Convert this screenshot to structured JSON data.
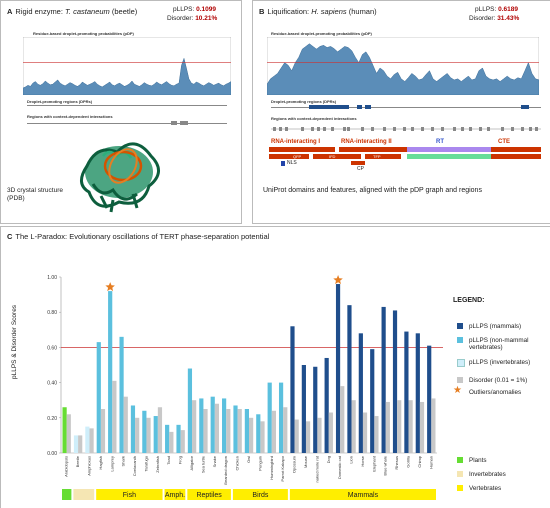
{
  "panel_a": {
    "letter": "A",
    "title_prefix": "Rigid enzyme: ",
    "title_species": "T. castaneum",
    "title_suffix": " (beetle)",
    "pllps_label": "pLLPS:",
    "pllps_value": "0.1099",
    "disorder_label": "Disorder:",
    "disorder_value": "10.21%",
    "profile_title": "Residue-based droplet-promoting probabilities (pDP)",
    "dpr_title": "Droplet-promoting regions (DPRs)",
    "context_title": "Regions with context-dependent interactions",
    "structure_caption_1": "3D crystal structure",
    "structure_caption_2": "(PDB)",
    "profile": [
      0.13,
      0.15,
      0.18,
      0.16,
      0.22,
      0.25,
      0.2,
      0.18,
      0.21,
      0.26,
      0.22,
      0.19,
      0.2,
      0.24,
      0.28,
      0.22,
      0.19,
      0.17,
      0.2,
      0.23,
      0.21,
      0.18,
      0.16,
      0.19,
      0.24,
      0.21,
      0.18,
      0.2,
      0.22,
      0.25,
      0.2,
      0.17,
      0.15,
      0.18,
      0.21,
      0.24,
      0.19,
      0.17,
      0.2,
      0.22,
      0.19,
      0.16,
      0.18,
      0.21,
      0.26,
      0.2,
      0.18,
      0.16,
      0.19,
      0.23,
      0.2,
      0.18,
      0.17,
      0.2,
      0.24,
      0.21,
      0.19,
      0.22,
      0.25,
      0.21,
      0.18,
      0.17,
      0.2,
      0.22,
      0.55,
      0.68,
      0.5,
      0.3,
      0.22,
      0.2,
      0.24,
      0.22,
      0.19,
      0.17,
      0.2,
      0.23,
      0.21,
      0.18,
      0.2,
      0.22,
      0.19,
      0.17,
      0.2,
      0.22,
      0.25
    ]
  },
  "panel_b": {
    "letter": "B",
    "title_prefix": "Liquification: ",
    "title_species": "H. sapiens",
    "title_suffix": " (human)",
    "pllps_label": "pLLPS:",
    "pllps_value": "0.6189",
    "disorder_label": "Disorder:",
    "disorder_value": "31.43%",
    "profile_title": "Residue-based droplet-promoting probabilities (pDP)",
    "dpr_title": "Droplet-promoting regions (DPRs)",
    "context_title": "Regions with context-dependent interactions",
    "domains": [
      {
        "label": "RNA-interacting I",
        "color": "#cc3300"
      },
      {
        "label": "RNA-interacting II",
        "color": "#cc3300"
      },
      {
        "label": "RT",
        "color": "#3355cc"
      },
      {
        "label": "CTE",
        "color": "#cc3300"
      }
    ],
    "subdomain_labels": [
      "NLS",
      "CP",
      "QFP",
      "IFD",
      "TFP"
    ],
    "caption": "UniProt domains and features, aligned with the pDP graph and regions",
    "profile": [
      0.2,
      0.3,
      0.35,
      0.4,
      0.5,
      0.6,
      0.55,
      0.45,
      0.6,
      0.7,
      0.85,
      0.9,
      0.95,
      0.9,
      0.85,
      0.9,
      0.92,
      0.88,
      0.9,
      0.86,
      0.8,
      0.85,
      0.9,
      0.88,
      0.82,
      0.7,
      0.6,
      0.75,
      0.8,
      0.7,
      0.55,
      0.4,
      0.5,
      0.45,
      0.35,
      0.3,
      0.38,
      0.42,
      0.3,
      0.25,
      0.32,
      0.4,
      0.35,
      0.28,
      0.3,
      0.38,
      0.45,
      0.3,
      0.25,
      0.3,
      0.35,
      0.4,
      0.32,
      0.28,
      0.3,
      0.25,
      0.3,
      0.35,
      0.28,
      0.3,
      0.45,
      0.5,
      0.35,
      0.3,
      0.28,
      0.3,
      0.25,
      0.3,
      0.35,
      0.3,
      0.28,
      0.32,
      0.3,
      0.45,
      0.6,
      0.4,
      0.3,
      0.28
    ]
  },
  "panel_c": {
    "letter": "C",
    "title": "The L-Paradox: Evolutionary oscillations of TERT phase-separation potential",
    "ylabel": "pLLPS & Disorder Scores",
    "legend_title": "LEGEND:",
    "legend_items": [
      {
        "label": "pLLPS (mammals)",
        "color": "#1f4e8c"
      },
      {
        "label": "pLLPS (non-mammal vertebrates)",
        "color": "#5bc0de"
      },
      {
        "label": "pLLPS (invertebrates)",
        "color": "#cfeefa"
      },
      {
        "label": "Disorder (0.01 = 1%)",
        "color": "#c8c8c8"
      },
      {
        "label": "Outliers/anomalies",
        "color": "#e67e22"
      }
    ],
    "category_legend": [
      {
        "label": "Plants",
        "color": "#66dd33"
      },
      {
        "label": "Invertebrates",
        "color": "#f5e6b3"
      },
      {
        "label": "Vertebrates",
        "color": "#ffee00"
      }
    ],
    "groups": [
      {
        "label": "Fish"
      },
      {
        "label": "Amph."
      },
      {
        "label": "Reptiles"
      },
      {
        "label": "Birds"
      },
      {
        "label": "Mammals"
      }
    ]
  },
  "chart_data": {
    "type": "bar",
    "ylim": [
      0,
      1.0
    ],
    "yticks": [
      "0.00",
      "0.20",
      "0.40",
      "0.60",
      "0.80",
      "1.00"
    ],
    "reference_line": 0.6,
    "categories": [
      "Arabidopsis",
      "Beetle",
      "Amphioxus",
      "Hagfish",
      "Lamprey",
      "Shark",
      "Coelacanth",
      "Tarafugu",
      "Zebrafish",
      "Toad",
      "Frog",
      "Alligator",
      "Sea turtle",
      "Snake",
      "Bearded dragon",
      "Chicken",
      "Owl",
      "Penguin",
      "Hummingbird",
      "Parrot Kakapo",
      "Opossum",
      "Mouse",
      "naked mole rat",
      "Dog",
      "Domestic cat",
      "Lion",
      "Horse",
      "Elephant",
      "Blue whale",
      "Rhesus",
      "Gorilla",
      "Chimp",
      "Human"
    ],
    "group_of": [
      "plant",
      "invert",
      "invert",
      "fish",
      "fish",
      "fish",
      "fish",
      "fish",
      "fish",
      "amph",
      "amph",
      "reptile",
      "reptile",
      "reptile",
      "reptile",
      "bird",
      "bird",
      "bird",
      "bird",
      "bird",
      "mammal",
      "mammal",
      "mammal",
      "mammal",
      "mammal",
      "mammal",
      "mammal",
      "mammal",
      "mammal",
      "mammal",
      "mammal",
      "mammal",
      "mammal"
    ],
    "series": [
      {
        "name": "pLLPS",
        "values": [
          0.26,
          0.1,
          0.15,
          0.63,
          0.92,
          0.66,
          0.27,
          0.24,
          0.21,
          0.16,
          0.16,
          0.48,
          0.31,
          0.32,
          0.31,
          0.27,
          0.25,
          0.22,
          0.4,
          0.4,
          0.72,
          0.5,
          0.49,
          0.54,
          0.96,
          0.84,
          0.68,
          0.59,
          0.83,
          0.81,
          0.69,
          0.68,
          0.61
        ]
      },
      {
        "name": "Disorder",
        "values": [
          0.22,
          0.1,
          0.14,
          0.25,
          0.41,
          0.32,
          0.2,
          0.2,
          0.26,
          0.12,
          0.13,
          0.3,
          0.25,
          0.28,
          0.25,
          0.25,
          0.2,
          0.18,
          0.24,
          0.26,
          0.19,
          0.18,
          0.2,
          0.23,
          0.38,
          0.3,
          0.23,
          0.21,
          0.29,
          0.3,
          0.3,
          0.29,
          0.31
        ]
      }
    ],
    "outliers": [
      "Lamprey",
      "Domestic cat"
    ]
  }
}
